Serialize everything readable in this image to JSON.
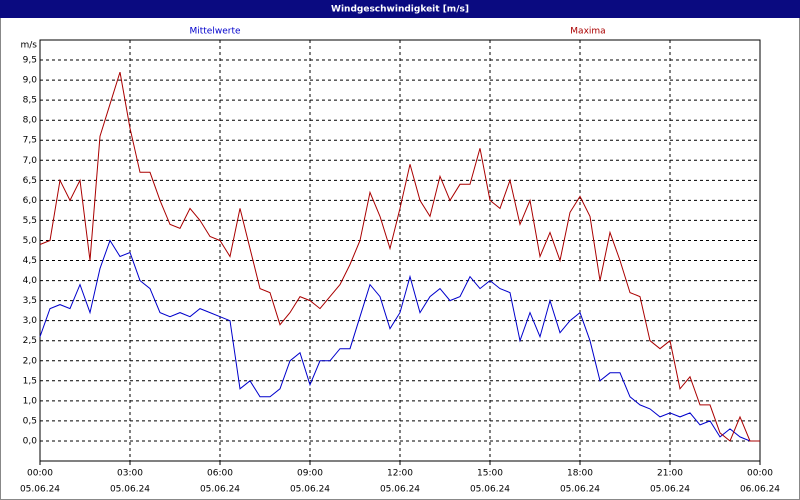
{
  "chart_data": {
    "type": "line",
    "title": "Windgeschwindigkeit [m/s]",
    "y_label": "m/s",
    "x": [
      0,
      20,
      40,
      60,
      80,
      100,
      120,
      140,
      160,
      180,
      200,
      220,
      240,
      260,
      280,
      300,
      320,
      340,
      360,
      380,
      400,
      420,
      440,
      460,
      480,
      500,
      520,
      540,
      560,
      580,
      600,
      620,
      640,
      660,
      680,
      700,
      720,
      740,
      760,
      780,
      800,
      820,
      840,
      860,
      880,
      900,
      920,
      940,
      960,
      980,
      1000,
      1020,
      1040,
      1060,
      1080,
      1100,
      1120,
      1140,
      1160,
      1180,
      1200,
      1220,
      1240,
      1260,
      1280,
      1300,
      1320,
      1340,
      1360,
      1380,
      1400,
      1420,
      1440
    ],
    "series": [
      {
        "name": "Mittelwerte",
        "color": "#0000cc",
        "values": [
          2.6,
          3.3,
          3.4,
          3.3,
          3.9,
          3.2,
          4.3,
          5.0,
          4.6,
          4.7,
          4.0,
          3.8,
          3.2,
          3.1,
          3.2,
          3.1,
          3.3,
          3.2,
          3.1,
          3.0,
          1.3,
          1.5,
          1.1,
          1.1,
          1.3,
          2.0,
          2.2,
          1.4,
          2.0,
          2.0,
          2.3,
          2.3,
          3.1,
          3.9,
          3.6,
          2.8,
          3.2,
          4.1,
          3.2,
          3.6,
          3.8,
          3.5,
          3.6,
          4.1,
          3.8,
          4.0,
          3.8,
          3.7,
          2.5,
          3.2,
          2.6,
          3.5,
          2.7,
          3.0,
          3.2,
          2.5,
          1.5,
          1.7,
          1.7,
          1.1,
          0.9,
          0.8,
          0.6,
          0.7,
          0.6,
          0.7,
          0.4,
          0.5,
          0.1,
          0.3,
          0.1,
          0,
          0
        ]
      },
      {
        "name": "Maxima",
        "color": "#aa0000",
        "values": [
          4.9,
          5.0,
          6.5,
          6.0,
          6.5,
          4.5,
          7.6,
          8.4,
          9.2,
          7.8,
          6.7,
          6.7,
          6.0,
          5.4,
          5.3,
          5.8,
          5.5,
          5.1,
          5.0,
          4.6,
          5.8,
          4.8,
          3.8,
          3.7,
          2.9,
          3.2,
          3.6,
          3.5,
          3.3,
          3.6,
          3.9,
          4.4,
          5.0,
          6.2,
          5.6,
          4.8,
          5.8,
          6.9,
          6.0,
          5.6,
          6.6,
          6.0,
          6.4,
          6.4,
          7.3,
          6.0,
          5.8,
          6.5,
          5.4,
          6.0,
          4.6,
          5.2,
          4.5,
          5.7,
          6.1,
          5.6,
          4.0,
          5.2,
          4.5,
          3.7,
          3.6,
          2.5,
          2.3,
          2.5,
          1.3,
          1.6,
          0.9,
          0.9,
          0.2,
          0,
          0.6,
          0,
          0
        ]
      }
    ],
    "xlim": [
      0,
      1440
    ],
    "xticks": [
      {
        "value": 0,
        "label": "00:00",
        "date": "05.06.24"
      },
      {
        "value": 180,
        "label": "03:00",
        "date": "05.06.24"
      },
      {
        "value": 360,
        "label": "06:00",
        "date": "05.06.24"
      },
      {
        "value": 540,
        "label": "09:00",
        "date": "05.06.24"
      },
      {
        "value": 720,
        "label": "12:00",
        "date": "05.06.24"
      },
      {
        "value": 900,
        "label": "15:00",
        "date": "05.06.24"
      },
      {
        "value": 1080,
        "label": "18:00",
        "date": "05.06.24"
      },
      {
        "value": 1260,
        "label": "21:00",
        "date": "05.06.24"
      },
      {
        "value": 1440,
        "label": "00:00",
        "date": "06.06.24"
      }
    ],
    "ylim": [
      -0.5,
      10
    ],
    "yticks": [
      {
        "value": 0,
        "label": "0,0"
      },
      {
        "value": 0.5,
        "label": "0,5"
      },
      {
        "value": 1,
        "label": "1,0"
      },
      {
        "value": 1.5,
        "label": "1,5"
      },
      {
        "value": 2,
        "label": "2,0"
      },
      {
        "value": 2.5,
        "label": "2,5"
      },
      {
        "value": 3,
        "label": "3,0"
      },
      {
        "value": 3.5,
        "label": "3,5"
      },
      {
        "value": 4,
        "label": "4,0"
      },
      {
        "value": 4.5,
        "label": "4,5"
      },
      {
        "value": 5,
        "label": "5,0"
      },
      {
        "value": 5.5,
        "label": "5,5"
      },
      {
        "value": 6,
        "label": "6,0"
      },
      {
        "value": 6.5,
        "label": "6,5"
      },
      {
        "value": 7,
        "label": "7,0"
      },
      {
        "value": 7.5,
        "label": "7,5"
      },
      {
        "value": 8,
        "label": "8,0"
      },
      {
        "value": 8.5,
        "label": "8,5"
      },
      {
        "value": 9,
        "label": "9,0"
      },
      {
        "value": 9.5,
        "label": "9,5"
      }
    ],
    "grid": true
  }
}
